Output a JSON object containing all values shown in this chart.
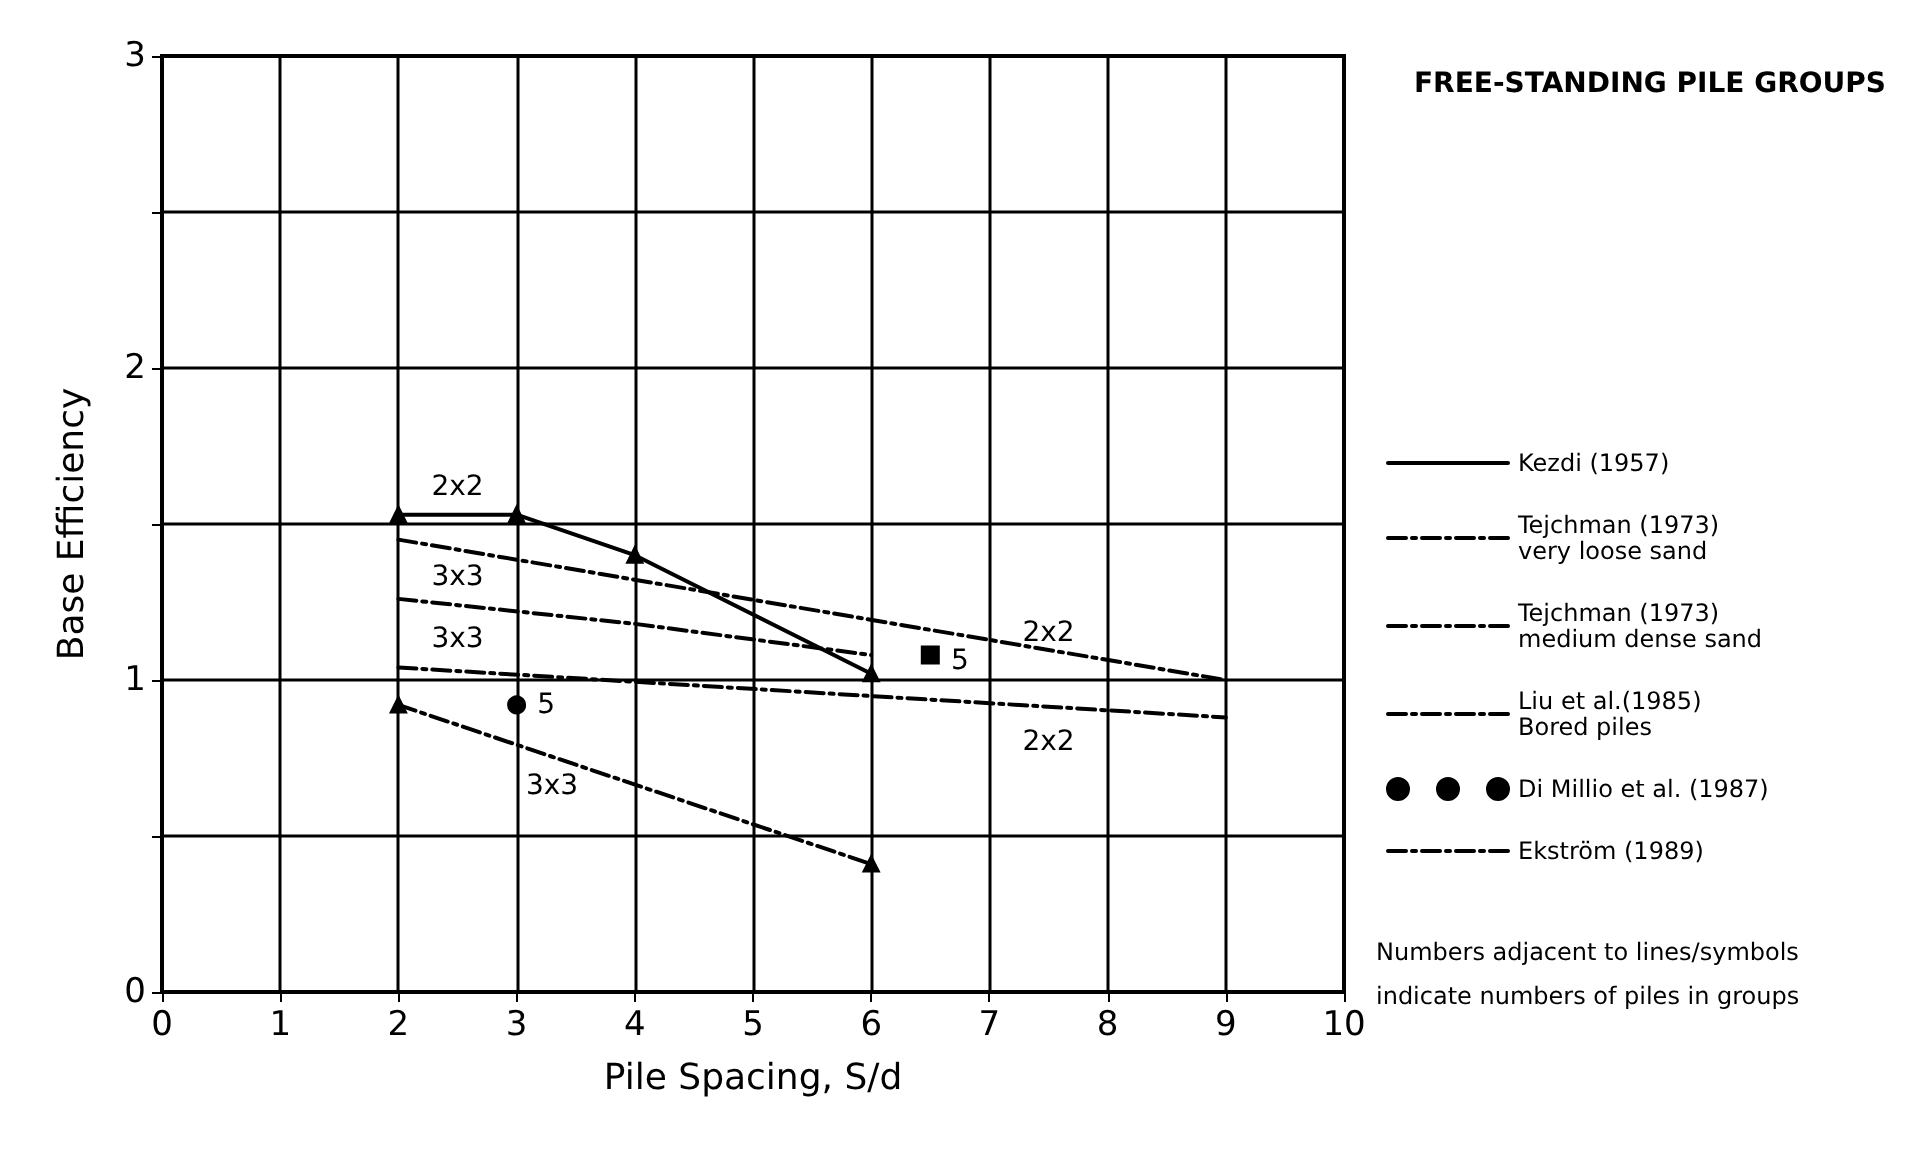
{
  "chart_data": {
    "type": "line",
    "title": "FREE-STANDING PILE GROUPS",
    "xlabel": "Pile Spacing, S/d",
    "ylabel": "Base Efficiency",
    "xlim": [
      0,
      10
    ],
    "xticks": [
      0,
      1,
      2,
      3,
      4,
      5,
      6,
      7,
      8,
      9,
      10
    ],
    "ylim": [
      0,
      3
    ],
    "yticks": [
      0,
      {
        "value": 0.5,
        "label": null
      },
      1,
      {
        "value": 1.5,
        "label": null
      },
      2,
      {
        "value": 2.5,
        "label": null
      },
      3
    ],
    "grid": true,
    "legend": "right",
    "marker": "none",
    "series": [
      {
        "name": "Kezdi (1957)",
        "color": "#000000",
        "x": [
          2,
          3,
          4,
          6
        ],
        "values": [
          1.53,
          1.53,
          1.4,
          1.02
        ],
        "line_style": "solid",
        "marker": "triangle"
      },
      {
        "name": "Tejchman (1973)\nvery loose sand",
        "color": "#000000",
        "x": [
          2,
          9
        ],
        "values": [
          1.45,
          1.0
        ],
        "line_style": "dashed"
      },
      {
        "name": "Tejchman (1973)\nmedium dense sand",
        "color": "#000000",
        "x": [
          2,
          9
        ],
        "values": [
          1.04,
          0.88
        ],
        "line_style": "dashed"
      },
      {
        "name": "Liu et al.(1985)\nBored piles",
        "color": "#000000",
        "x": [
          2,
          6
        ],
        "values": [
          0.92,
          0.41
        ],
        "line_style": "dashed",
        "marker": "triangle"
      },
      {
        "name": "Di Millio et al. (1987)",
        "type": "scatter",
        "color": "#000000",
        "x": [
          3
        ],
        "values": [
          0.92
        ],
        "marker": "circle"
      },
      {
        "name": "Ekström (1989)",
        "color": "#000000",
        "x": [
          2,
          4,
          6
        ],
        "values": [
          1.26,
          1.18,
          1.08
        ],
        "line_style": "dashed"
      },
      {
        "type": "scatter",
        "color": "#000000",
        "x": [
          6.5
        ],
        "values": [
          1.08
        ],
        "marker": "square"
      }
    ],
    "annotations": [
      {
        "text": "2x2",
        "x": 2.5,
        "y": 1.62
      },
      {
        "text": "3x3",
        "x": 2.5,
        "y": 1.33
      },
      {
        "text": "3x3",
        "x": 2.5,
        "y": 1.13
      },
      {
        "text": "5",
        "x": 3.25,
        "y": 0.92
      },
      {
        "text": "3x3",
        "x": 3.3,
        "y": 0.66
      },
      {
        "text": "2x2",
        "x": 7.5,
        "y": 1.15
      },
      {
        "text": "2x2",
        "x": 7.5,
        "y": 0.8
      },
      {
        "text": "5",
        "x": 6.75,
        "y": 1.06
      },
      "Numbers adjacent to lines/symbols\nindicate numbers of piles in groups"
    ]
  }
}
